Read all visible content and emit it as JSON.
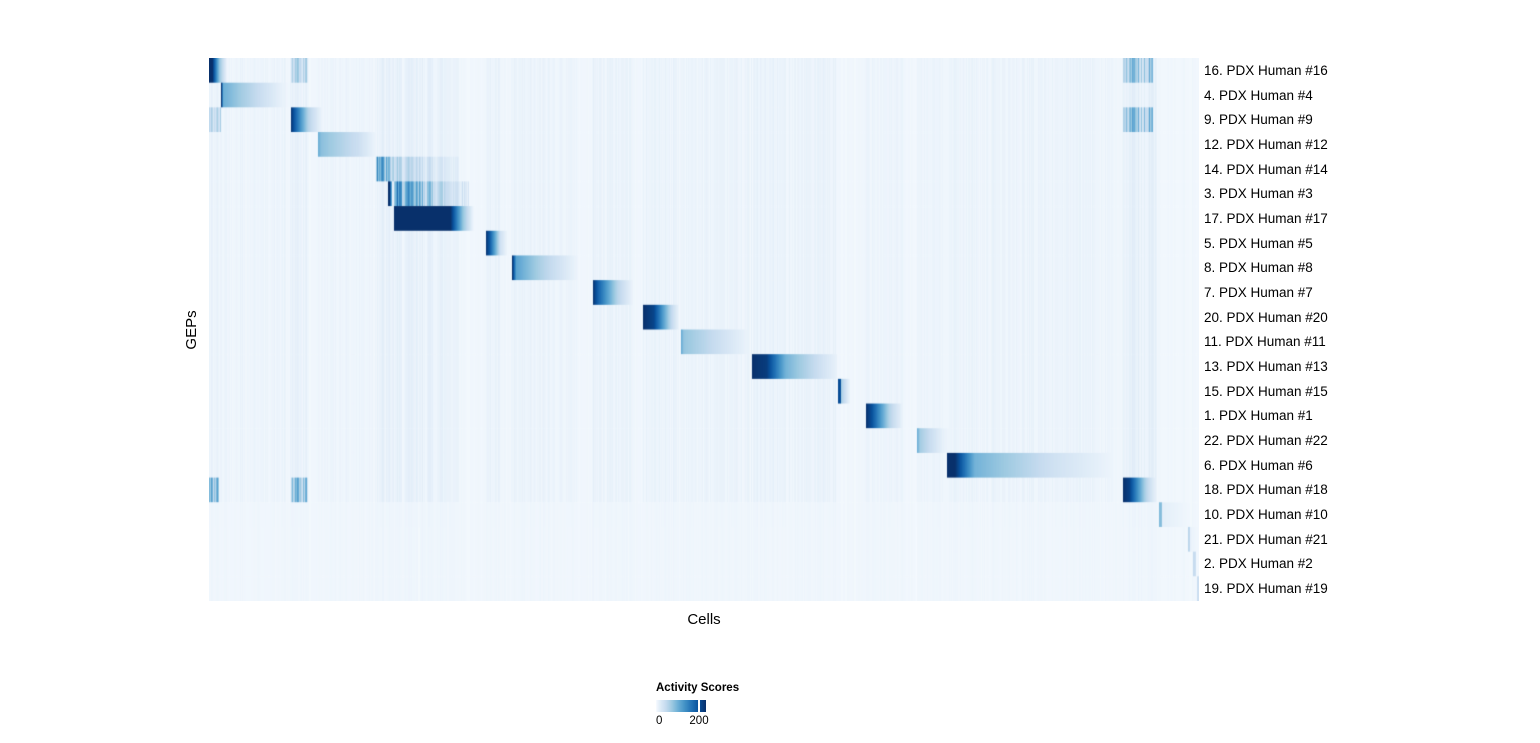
{
  "axes": {
    "y_label": "GEPs",
    "x_label": "Cells"
  },
  "legend": {
    "title": "Activity Scores",
    "min_label": "0",
    "tick_label": "200",
    "tick_pos": 0.86
  },
  "colors": {
    "colormap_blues": [
      "#f7fbff",
      "#deebf7",
      "#c6dbef",
      "#9ecae1",
      "#6baed6",
      "#4292c6",
      "#2171b5",
      "#08519c",
      "#08306b"
    ],
    "background": "#ffffff",
    "text": "#000000"
  },
  "chart_data": {
    "type": "heatmap",
    "title": "",
    "xlabel": "Cells",
    "ylabel": "GEPs",
    "value_label": "Activity Scores",
    "value_range": [
      0,
      232
    ],
    "legend_tick_value": 200,
    "n_rows": 22,
    "rows": [
      {
        "label": "16. PDX Human #16",
        "segments": [
          [
            0.0,
            0.003,
            1.0,
            1.0
          ],
          [
            0.003,
            0.01,
            1.0,
            0.4
          ],
          [
            0.01,
            0.018,
            0.4,
            0.04
          ]
        ],
        "extras": [
          [
            0.082,
            0.1,
            0.32
          ],
          [
            0.923,
            0.953,
            0.42
          ]
        ]
      },
      {
        "label": "4. PDX Human #4",
        "segments": [
          [
            0.012,
            0.014,
            1.0,
            0.5
          ],
          [
            0.014,
            0.032,
            0.5,
            0.36
          ],
          [
            0.032,
            0.077,
            0.36,
            0.05
          ],
          [
            0.077,
            0.085,
            0.05,
            0.02
          ]
        ]
      },
      {
        "label": "9. PDX Human #9",
        "segments": [
          [
            0.082,
            0.087,
            1.0,
            0.8
          ],
          [
            0.087,
            0.1,
            0.8,
            0.3
          ],
          [
            0.1,
            0.115,
            0.3,
            0.03
          ]
        ],
        "extras": [
          [
            0.0,
            0.012,
            0.3
          ],
          [
            0.923,
            0.953,
            0.45
          ]
        ]
      },
      {
        "label": "12. PDX Human #12",
        "segments": [
          [
            0.11,
            0.113,
            0.5,
            0.42
          ],
          [
            0.113,
            0.15,
            0.42,
            0.22
          ],
          [
            0.15,
            0.168,
            0.22,
            0.05
          ]
        ]
      },
      {
        "label": "14. PDX Human #14",
        "striated": true,
        "segments": [
          [
            0.168,
            0.172,
            0.8,
            0.6
          ],
          [
            0.172,
            0.186,
            0.6,
            0.3
          ],
          [
            0.186,
            0.252,
            0.3,
            0.12
          ]
        ]
      },
      {
        "label": "3. PDX Human #3",
        "striated": true,
        "segments": [
          [
            0.1805,
            0.184,
            1.0,
            0.95
          ],
          [
            0.186,
            0.205,
            0.62,
            0.5
          ],
          [
            0.205,
            0.262,
            0.5,
            0.14
          ]
        ]
      },
      {
        "label": "17. PDX Human #17",
        "segments": [
          [
            0.186,
            0.2435,
            1.0,
            1.0
          ],
          [
            0.2435,
            0.256,
            1.0,
            0.4
          ],
          [
            0.256,
            0.267,
            0.4,
            0.04
          ]
        ]
      },
      {
        "label": "5. PDX Human #5",
        "segments": [
          [
            0.279,
            0.283,
            1.0,
            0.85
          ],
          [
            0.283,
            0.294,
            0.85,
            0.2
          ],
          [
            0.294,
            0.301,
            0.2,
            0.04
          ]
        ]
      },
      {
        "label": "8. PDX Human #8",
        "segments": [
          [
            0.306,
            0.31,
            1.0,
            0.55
          ],
          [
            0.31,
            0.335,
            0.55,
            0.32
          ],
          [
            0.335,
            0.372,
            0.32,
            0.05
          ]
        ]
      },
      {
        "label": "7. PDX Human #7",
        "segments": [
          [
            0.387,
            0.393,
            1.0,
            0.8
          ],
          [
            0.393,
            0.412,
            0.8,
            0.3
          ],
          [
            0.412,
            0.428,
            0.3,
            0.05
          ]
        ]
      },
      {
        "label": "20. PDX Human #20",
        "segments": [
          [
            0.438,
            0.449,
            1.0,
            0.92
          ],
          [
            0.449,
            0.466,
            0.92,
            0.28
          ],
          [
            0.466,
            0.4745,
            0.28,
            0.05
          ]
        ]
      },
      {
        "label": "11. PDX Human #11",
        "segments": [
          [
            0.476,
            0.479,
            0.55,
            0.4
          ],
          [
            0.479,
            0.523,
            0.4,
            0.17
          ],
          [
            0.523,
            0.5455,
            0.17,
            0.05
          ]
        ]
      },
      {
        "label": "13. PDX Human #13",
        "segments": [
          [
            0.548,
            0.563,
            1.0,
            0.95
          ],
          [
            0.563,
            0.582,
            0.95,
            0.48
          ],
          [
            0.582,
            0.634,
            0.48,
            0.07
          ]
        ]
      },
      {
        "label": "15. PDX Human #15",
        "segments": [
          [
            0.6345,
            0.638,
            0.92,
            0.85
          ],
          [
            0.638,
            0.647,
            0.35,
            0.05
          ]
        ]
      },
      {
        "label": "1. PDX Human #1",
        "segments": [
          [
            0.663,
            0.669,
            1.0,
            0.88
          ],
          [
            0.669,
            0.687,
            0.88,
            0.3
          ],
          [
            0.687,
            0.701,
            0.3,
            0.05
          ]
        ]
      },
      {
        "label": "22. PDX Human #22",
        "segments": [
          [
            0.715,
            0.718,
            0.5,
            0.35
          ],
          [
            0.718,
            0.741,
            0.35,
            0.08
          ],
          [
            0.741,
            0.75,
            0.08,
            0.03
          ]
        ]
      },
      {
        "label": "6. PDX Human #6",
        "segments": [
          [
            0.745,
            0.753,
            1.0,
            1.0
          ],
          [
            0.753,
            0.773,
            1.0,
            0.48
          ],
          [
            0.773,
            0.853,
            0.48,
            0.2
          ],
          [
            0.853,
            0.913,
            0.2,
            0.05
          ]
        ]
      },
      {
        "label": "18. PDX Human #18",
        "segments": [
          [
            0.923,
            0.9295,
            1.0,
            0.93
          ],
          [
            0.9295,
            0.946,
            0.93,
            0.3
          ],
          [
            0.946,
            0.957,
            0.3,
            0.05
          ]
        ],
        "extras": [
          [
            0.0,
            0.01,
            0.5
          ],
          [
            0.082,
            0.1,
            0.45
          ]
        ]
      },
      {
        "label": "10. PDX Human #10",
        "stripe_factor": 0.25,
        "segments": [
          [
            0.9595,
            0.9625,
            0.45,
            0.4
          ],
          [
            0.9625,
            0.99,
            0.1,
            0.03
          ]
        ]
      },
      {
        "label": "21. PDX Human #21",
        "stripe_factor": 0.2,
        "segments": [
          [
            0.988,
            0.9905,
            0.3,
            0.26
          ],
          [
            0.9905,
            0.998,
            0.07,
            0.03
          ]
        ]
      },
      {
        "label": "2. PDX Human #2",
        "stripe_factor": 0.2,
        "segments": [
          [
            0.9935,
            0.996,
            0.26,
            0.22
          ]
        ]
      },
      {
        "label": "19. PDX Human #19",
        "stripe_factor": 0.2,
        "segments": [
          [
            0.9975,
            1.0,
            0.24,
            0.18
          ]
        ]
      }
    ],
    "stripe_bands": [
      [
        0.0,
        0.01,
        0.05
      ],
      [
        0.012,
        0.077,
        0.035
      ],
      [
        0.082,
        0.1,
        0.06
      ],
      [
        0.11,
        0.165,
        0.03
      ],
      [
        0.168,
        0.252,
        0.07
      ],
      [
        0.279,
        0.294,
        0.05
      ],
      [
        0.306,
        0.372,
        0.04
      ],
      [
        0.387,
        0.428,
        0.05
      ],
      [
        0.438,
        0.4745,
        0.05
      ],
      [
        0.476,
        0.5455,
        0.04
      ],
      [
        0.548,
        0.634,
        0.05
      ],
      [
        0.663,
        0.701,
        0.035
      ],
      [
        0.715,
        0.741,
        0.03
      ],
      [
        0.745,
        0.913,
        0.04
      ],
      [
        0.923,
        0.957,
        0.08
      ]
    ],
    "light_lines": [
      0.211,
      0.713
    ]
  }
}
